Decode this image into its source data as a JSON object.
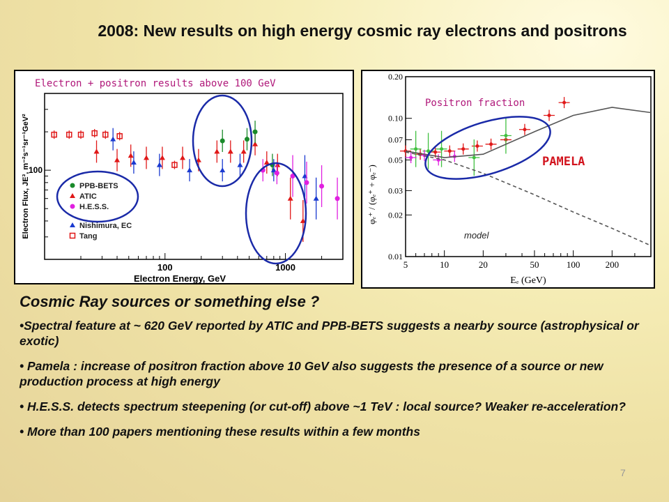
{
  "slide": {
    "title": "2008: New results on high energy cosmic ray electrons and positrons",
    "page_number": "7"
  },
  "left_chart": {
    "subtitle": "Electron + positron results above 100 GeV",
    "xlabel": "Electron Energy, GeV",
    "ylabel": "Electron Flux, JE³, m⁻²s⁻¹sr⁻¹GeV²",
    "y_tick": "100",
    "x_ticks": [
      "100",
      "1000"
    ],
    "legend": [
      {
        "label": "PPB-BETS",
        "color": "#1a8a2a",
        "marker": "circle"
      },
      {
        "label": "ATIC",
        "color": "#e01818",
        "marker": "triangle"
      },
      {
        "label": "H.E.S.S.",
        "color": "#e020e0",
        "marker": "circle"
      },
      {
        "label": "Nishimura, EC",
        "color": "#1a3ad0",
        "marker": "triangle"
      },
      {
        "label": "Tang",
        "color": "#e01818",
        "marker": "square-open"
      }
    ]
  },
  "right_chart": {
    "subtitle": "Positron fraction",
    "annotation_pamela": "PAMELA",
    "annotation_model": "model",
    "xlabel": "Eₑ (GeV)",
    "ylabel": "φₑ⁺ / (φₑ⁺ + φₑ⁻)",
    "y_ticks": [
      "0.20",
      "0.10",
      "0.07",
      "0.05",
      "0.03",
      "0.02",
      "0.01"
    ],
    "x_ticks": [
      "5",
      "10",
      "20",
      "50",
      "100",
      "200"
    ]
  },
  "content": {
    "heading": "Cosmic Ray sources or something else ?",
    "bullets": [
      "•Spectral feature at ~ 620 GeV reported by ATIC and PPB-BETS suggests a nearby source (astrophysical or exotic)",
      "• Pamela : increase of positron fraction above 10 GeV also suggests the presence of a  source or  new production process at high energy",
      "• H.E.S.S. detects spectrum steepening (or cut-off) above ~1 TeV : local source? Weaker re-acceleration?",
      "• More than 100 papers mentioning these results within a few months"
    ]
  },
  "chart_data": [
    {
      "type": "scatter",
      "title": "Electron + positron results above 100 GeV",
      "xlabel": "Electron Energy, GeV",
      "ylabel": "Electron Flux, JE³, m⁻²s⁻¹sr⁻¹GeV²",
      "xscale": "log",
      "yscale": "log",
      "xlim": [
        10,
        3000
      ],
      "ylim": [
        20,
        400
      ],
      "series": [
        {
          "name": "Tang",
          "color": "#e01818",
          "x": [
            12,
            16,
            20,
            26,
            32,
            42,
            120
          ],
          "y": [
            190,
            190,
            190,
            195,
            190,
            185,
            110
          ]
        },
        {
          "name": "ATIC",
          "color": "#e01818",
          "x": [
            27,
            40,
            52,
            70,
            95,
            140,
            190,
            270,
            350,
            450,
            560,
            700,
            860,
            1100,
            1400
          ],
          "y": [
            140,
            120,
            130,
            125,
            125,
            125,
            120,
            140,
            140,
            140,
            160,
            115,
            110,
            60,
            40
          ]
        },
        {
          "name": "PPB-BETS",
          "color": "#1a8a2a",
          "x": [
            300,
            480,
            560,
            780
          ],
          "y": [
            170,
            175,
            200,
            110
          ]
        },
        {
          "name": "Nishimura, EC",
          "color": "#1a3ad0",
          "x": [
            37,
            55,
            90,
            160,
            300,
            420,
            800,
            1450,
            1800
          ],
          "y": [
            175,
            115,
            110,
            100,
            100,
            110,
            100,
            90,
            60
          ]
        },
        {
          "name": "H.E.S.S.",
          "color": "#e020e0",
          "x": [
            650,
            850,
            1150,
            1500,
            2000,
            2700
          ],
          "y": [
            100,
            95,
            90,
            80,
            75,
            60
          ]
        }
      ]
    },
    {
      "type": "scatter",
      "title": "Positron fraction",
      "xlabel": "Eₑ (GeV)",
      "ylabel": "φₑ⁺ / (φₑ⁺ + φₑ⁻)",
      "xscale": "log",
      "yscale": "log",
      "xlim": [
        5,
        400
      ],
      "ylim": [
        0.01,
        0.2
      ],
      "series": [
        {
          "name": "PAMELA",
          "color": "#e01818",
          "x": [
            5,
            6.5,
            8.5,
            11,
            14,
            18,
            23,
            30,
            42,
            65,
            85
          ],
          "y": [
            0.058,
            0.055,
            0.057,
            0.058,
            0.06,
            0.063,
            0.065,
            0.07,
            0.083,
            0.105,
            0.13
          ]
        },
        {
          "name": "",
          "color": "#40c040",
          "x": [
            6,
            7.5,
            9.5,
            17,
            30
          ],
          "y": [
            0.06,
            0.058,
            0.06,
            0.052,
            0.075
          ]
        },
        {
          "name": "",
          "color": "#e020e0",
          "x": [
            5.5,
            7,
            9,
            12
          ],
          "y": [
            0.052,
            0.054,
            0.05,
            0.053
          ]
        },
        {
          "name": "model",
          "style": "dashed",
          "color": "#555555",
          "x": [
            5,
            10,
            20,
            50,
            100,
            200,
            400
          ],
          "y": [
            0.057,
            0.05,
            0.04,
            0.028,
            0.021,
            0.016,
            0.012
          ]
        },
        {
          "name": "",
          "style": "solid",
          "color": "#555555",
          "x": [
            5,
            10,
            20,
            50,
            100,
            200,
            400
          ],
          "y": [
            0.058,
            0.052,
            0.055,
            0.08,
            0.105,
            0.12,
            0.11
          ]
        }
      ]
    }
  ]
}
